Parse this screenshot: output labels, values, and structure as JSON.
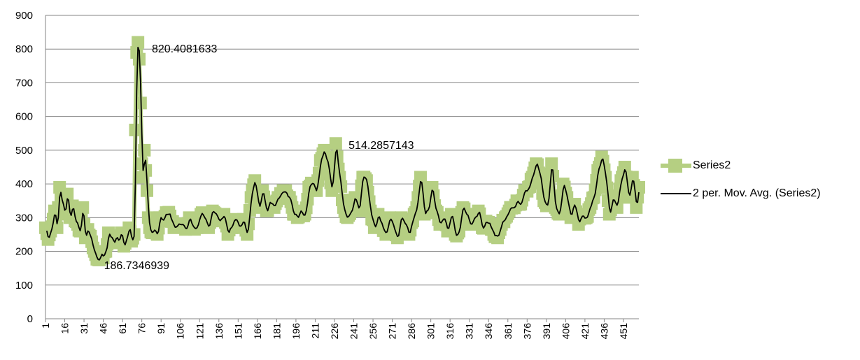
{
  "chart_data": {
    "type": "line",
    "ylim": [
      0,
      900
    ],
    "yticks": [
      0,
      100,
      200,
      300,
      400,
      500,
      600,
      700,
      800,
      900
    ],
    "xtick_labels": [
      "1",
      "16",
      "31",
      "46",
      "61",
      "76",
      "91",
      "106",
      "121",
      "136",
      "151",
      "166",
      "181",
      "196",
      "211",
      "226",
      "241",
      "256",
      "271",
      "286",
      "301",
      "316",
      "331",
      "346",
      "361",
      "376",
      "391",
      "406",
      "421",
      "436",
      "451"
    ],
    "n_points": 463,
    "grid": true,
    "legend_position": "right",
    "colors": {
      "series2": "#b5cf82",
      "moving_avg": "#000000",
      "grid": "#868686"
    },
    "series": [
      {
        "name": "Series2",
        "style": "thick green line with square markers",
        "x_anchor": [
          1,
          3,
          5,
          8,
          10,
          12,
          14,
          16,
          18,
          20,
          22,
          24,
          26,
          28,
          30,
          32,
          34,
          36,
          38,
          40,
          42,
          44,
          46,
          48,
          50,
          52,
          54,
          56,
          58,
          60,
          62,
          64,
          66,
          68,
          70,
          71,
          72,
          73,
          74,
          75,
          76,
          77,
          78,
          79,
          80,
          81,
          82,
          84,
          86,
          88,
          90,
          92,
          95,
          98,
          101,
          104,
          107,
          110,
          113,
          116,
          119,
          122,
          125,
          128,
          131,
          134,
          137,
          140,
          143,
          146,
          149,
          152,
          155,
          158,
          161,
          164,
          167,
          170,
          173,
          176,
          179,
          182,
          185,
          188,
          191,
          194,
          197,
          200,
          203,
          206,
          209,
          212,
          215,
          218,
          221,
          224,
          227,
          230,
          233,
          236,
          239,
          242,
          245,
          248,
          251,
          254,
          257,
          260,
          263,
          266,
          269,
          272,
          275,
          278,
          281,
          284,
          287,
          290,
          293,
          296,
          299,
          302,
          305,
          308,
          311,
          314,
          317,
          320,
          323,
          326,
          329,
          332,
          335,
          338,
          341,
          344,
          347,
          350,
          353,
          356,
          359,
          362,
          365,
          368,
          371,
          374,
          377,
          380,
          383,
          386,
          389,
          392,
          395,
          398,
          401,
          404,
          407,
          410,
          413,
          416,
          419,
          422,
          425,
          428,
          431,
          434,
          437,
          440,
          443,
          446,
          449,
          452,
          455,
          458,
          461,
          463
        ],
        "y_anchor": [
          270,
          235,
          260,
          320,
          270,
          390,
          345,
          310,
          370,
          300,
          335,
          290,
          280,
          260,
          330,
          240,
          265,
          245,
          210,
          190,
          175,
          190,
          180,
          200,
          255,
          240,
          225,
          245,
          230,
          255,
          215,
          240,
          270,
          230,
          250,
          560,
          790,
          820,
          770,
          640,
          460,
          420,
          500,
          440,
          380,
          300,
          270,
          255,
          265,
          250,
          300,
          290,
          315,
          305,
          270,
          280,
          280,
          265,
          300,
          275,
          270,
          310,
          300,
          270,
          320,
          310,
          290,
          310,
          250,
          270,
          295,
          270,
          295,
          250,
          360,
          410,
          330,
          380,
          320,
          345,
          330,
          360,
          370,
          380,
          360,
          310,
          300,
          320,
          310,
          390,
          400,
          380,
          470,
          500,
          460,
          380,
          520,
          420,
          330,
          300,
          320,
          360,
          320,
          420,
          410,
          320,
          270,
          310,
          280,
          250,
          300,
          270,
          240,
          300,
          280,
          250,
          290,
          330,
          420,
          310,
          320,
          390,
          320,
          280,
          300,
          260,
          310,
          250,
          260,
          330,
          310,
          280,
          300,
          320,
          270,
          290,
          280,
          250,
          240,
          280,
          300,
          320,
          330,
          350,
          340,
          380,
          390,
          420,
          460,
          430,
          350,
          340,
          460,
          330,
          310,
          400,
          360,
          300,
          340,
          280,
          310,
          300,
          330,
          360,
          440,
          480,
          420,
          310,
          360,
          330,
          410,
          450,
          360,
          420,
          330,
          390
        ]
      },
      {
        "name": "2 per. Mov. Avg. (Series2)",
        "style": "thin black line"
      }
    ],
    "annotations": [
      {
        "text": "820.4081633",
        "x": 74,
        "y": 800
      },
      {
        "text": "186.7346939",
        "x": 40,
        "y": 186.7
      },
      {
        "text": "514.2857143",
        "x": 225,
        "y": 514
      }
    ]
  }
}
